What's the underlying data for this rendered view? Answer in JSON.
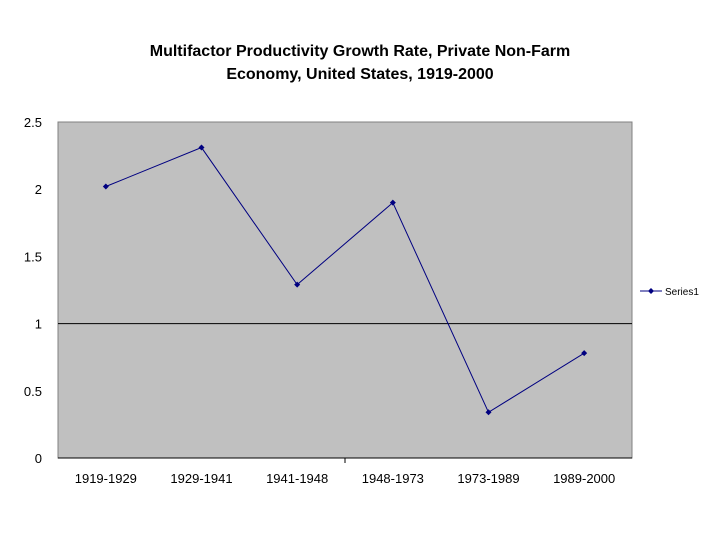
{
  "chart_data": {
    "type": "line",
    "title_line1": "Multifactor Productivity Growth Rate, Private Non-Farm",
    "title_line2": "Economy, United States, 1919-2000",
    "categories": [
      "1919-1929",
      "1929-1941",
      "1941-1948",
      "1948-1973",
      "1973-1989",
      "1989-2000"
    ],
    "series": [
      {
        "name": "Series1",
        "values": [
          2.02,
          2.31,
          1.29,
          1.9,
          0.34,
          0.78
        ]
      }
    ],
    "yticks": [
      "0",
      "0.5",
      "1",
      "1.5",
      "2",
      "2.5"
    ],
    "ylim": [
      0,
      2.5
    ],
    "reference_line": 1,
    "xlabel": "",
    "ylabel": "",
    "legend_position": "right",
    "colors": {
      "plot_bg": "#c0c0c0",
      "series": "#000080",
      "axis": "#000000"
    }
  }
}
